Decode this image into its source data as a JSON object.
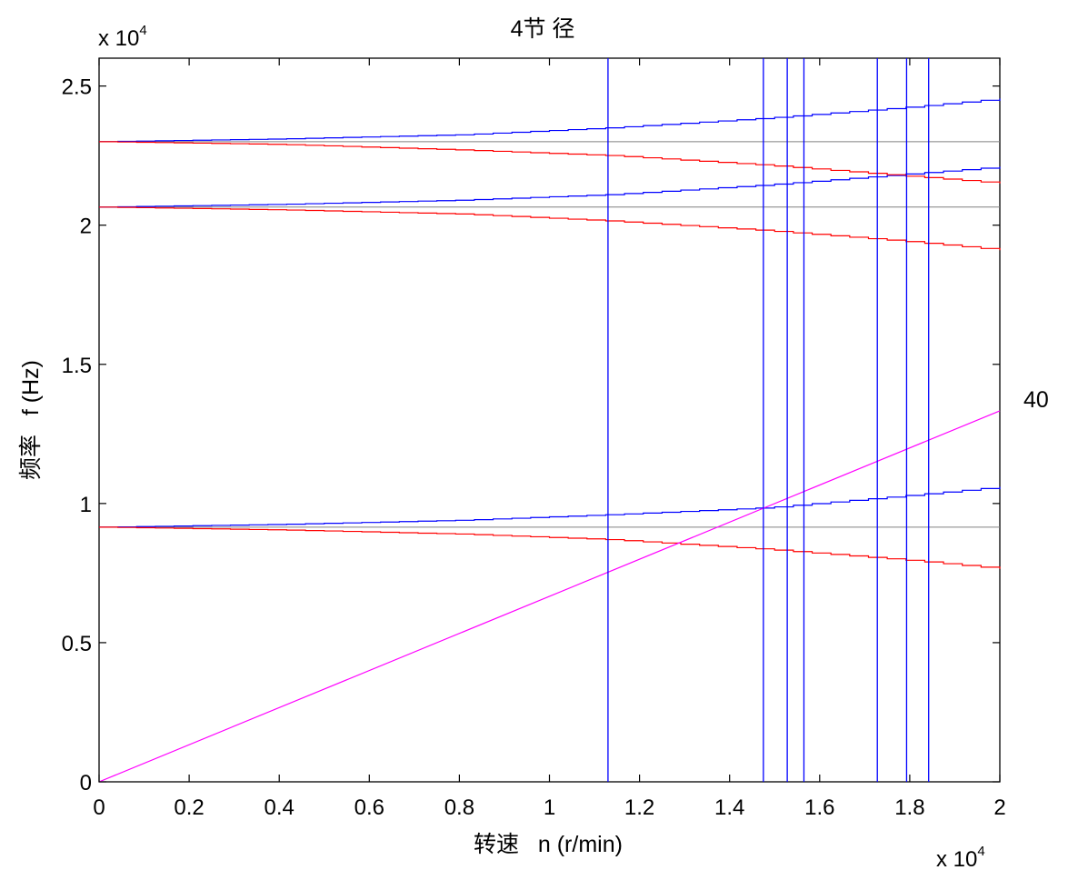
{
  "chart_data": {
    "type": "line",
    "title": "4节 径",
    "xlabel": "转速   n (r/min)",
    "ylabel": "频率   f (Hz)",
    "x_multiplier": {
      "base": "x 10",
      "exp": "4"
    },
    "y_multiplier": {
      "base": "x 10",
      "exp": "4"
    },
    "xlim": [
      0,
      2
    ],
    "ylim": [
      0,
      2.6
    ],
    "xticks": [
      0,
      0.2,
      0.4,
      0.6,
      0.8,
      1,
      1.2,
      1.4,
      1.6,
      1.8,
      2
    ],
    "xtick_labels": [
      "0",
      "0.2",
      "0.4",
      "0.6",
      "0.8",
      "1",
      "1.2",
      "1.4",
      "1.6",
      "1.8",
      "2"
    ],
    "yticks": [
      0,
      0.5,
      1,
      1.5,
      2,
      2.5
    ],
    "ytick_labels": [
      "0",
      "0.5",
      "1",
      "1.5",
      "2",
      "2.5"
    ],
    "grid": false,
    "colors": {
      "forward": "#0000ff",
      "backward": "#ff0000",
      "static": "#808080",
      "excitation": "#ff00ff",
      "vertical": "#0000ff"
    },
    "series": [
      {
        "color": "#808080",
        "x": [
          0,
          2
        ],
        "y": [
          0.915,
          0.915
        ]
      },
      {
        "color": "#808080",
        "x": [
          0,
          2
        ],
        "y": [
          2.065,
          2.065
        ]
      },
      {
        "color": "#808080",
        "x": [
          0,
          2
        ],
        "y": [
          2.3,
          2.3
        ]
      },
      {
        "color": "#0000ff",
        "x": [
          0,
          0.4,
          0.8,
          1.13,
          1.48,
          1.8,
          2
        ],
        "y": [
          0.915,
          0.925,
          0.94,
          0.96,
          0.985,
          1.03,
          1.06
        ]
      },
      {
        "color": "#ff0000",
        "x": [
          0,
          0.4,
          0.8,
          1.13,
          1.48,
          1.8,
          2
        ],
        "y": [
          0.915,
          0.905,
          0.89,
          0.87,
          0.835,
          0.795,
          0.765
        ]
      },
      {
        "color": "#0000ff",
        "x": [
          0,
          0.4,
          0.8,
          1.13,
          1.48,
          1.8,
          2
        ],
        "y": [
          2.065,
          2.075,
          2.09,
          2.11,
          2.145,
          2.185,
          2.21
        ]
      },
      {
        "color": "#ff0000",
        "x": [
          0,
          0.4,
          0.8,
          1.13,
          1.48,
          1.8,
          2
        ],
        "y": [
          2.065,
          2.055,
          2.04,
          2.015,
          1.98,
          1.94,
          1.91
        ]
      },
      {
        "color": "#0000ff",
        "x": [
          0,
          0.4,
          0.8,
          1.13,
          1.48,
          1.8,
          2
        ],
        "y": [
          2.3,
          2.31,
          2.325,
          2.35,
          2.385,
          2.425,
          2.455
        ]
      },
      {
        "color": "#ff0000",
        "x": [
          0,
          0.4,
          0.8,
          1.13,
          1.48,
          1.8,
          2
        ],
        "y": [
          2.3,
          2.29,
          2.27,
          2.25,
          2.215,
          2.175,
          2.15
        ]
      },
      {
        "color": "#ff00ff",
        "x": [
          0,
          2
        ],
        "y": [
          0,
          1.333
        ]
      }
    ],
    "vertical_lines": [
      1.13,
      1.475,
      1.528,
      1.565,
      1.728,
      1.793,
      1.842
    ],
    "annotations": [
      {
        "text": "40",
        "x": 2,
        "y": 1.333
      }
    ]
  }
}
